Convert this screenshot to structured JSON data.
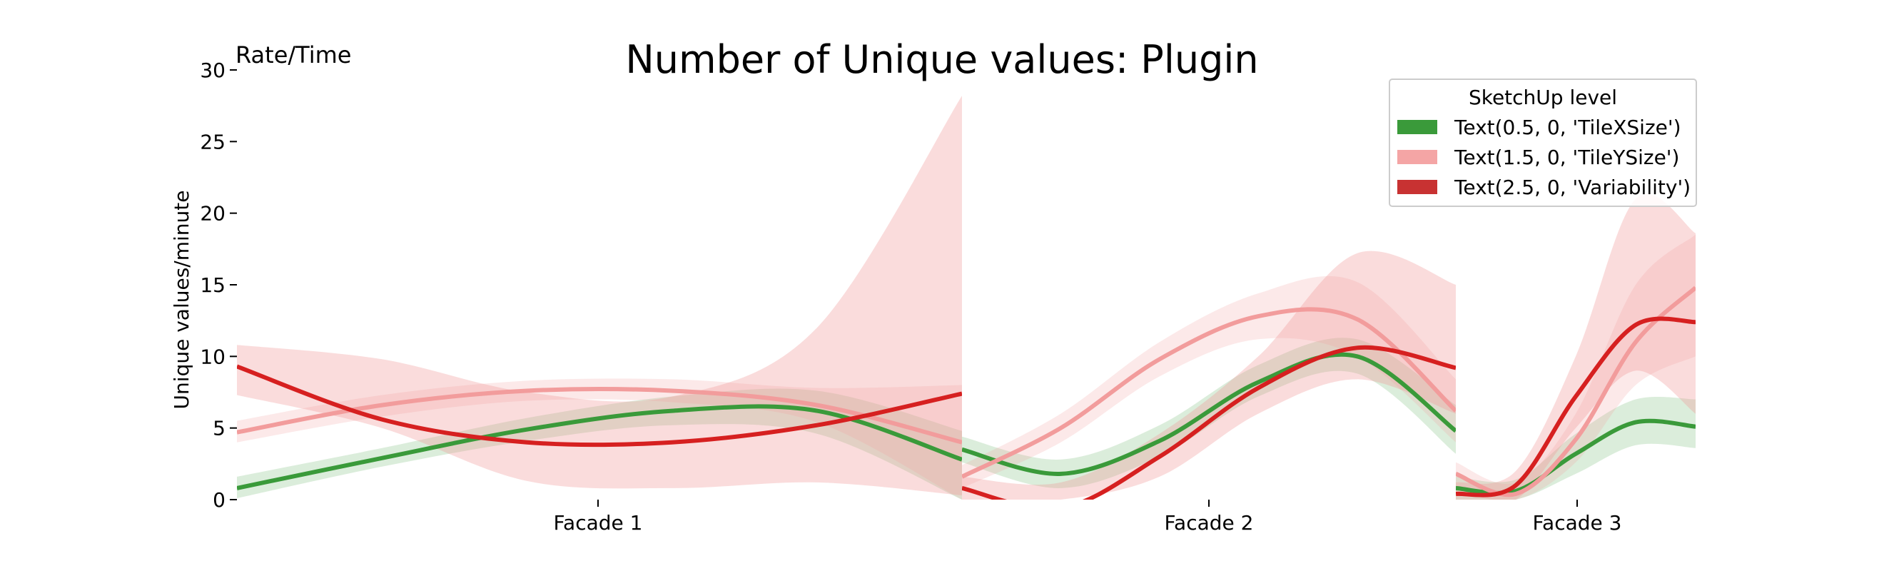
{
  "chart_data": {
    "type": "line",
    "title": "Number of Unique values: Plugin",
    "corner_label": "Rate/Time",
    "ylabel": "Unique values/minute",
    "xlabel": "",
    "ylim": [
      0,
      30
    ],
    "yticks": [
      "0",
      "5",
      "10",
      "15",
      "20",
      "25",
      "30"
    ],
    "categories": [
      "Facade 1",
      "Facade 2",
      "Facade 3"
    ],
    "grid": false,
    "legend": {
      "title": "SketchUp level",
      "placement": "top-right",
      "entries": [
        {
          "label": "Text(0.5, 0, 'TileXSize')",
          "color": "#3a9a3a"
        },
        {
          "label": "Text(1.5, 0, 'TileYSize')",
          "color": "#f4a5a5"
        },
        {
          "label": "Text(2.5, 0, 'Variability')",
          "color": "#c83232"
        }
      ]
    },
    "x_domain": [
      0,
      1
    ],
    "segments": [
      {
        "category": "Facade 1",
        "x_range": [
          0,
          1
        ],
        "series": [
          {
            "level": "TileXSize",
            "color": "#3a9a3a",
            "band_color": "#3a9a3a",
            "band_opacity": 0.18,
            "x": [
              0,
              0.2,
              0.4,
              0.6,
              0.8,
              1.0
            ],
            "y": [
              0.8,
              2.9,
              4.9,
              6.2,
              6.2,
              2.8
            ],
            "lo": [
              0.1,
              2.3,
              4.1,
              5.2,
              4.6,
              0.0
            ],
            "hi": [
              1.6,
              3.6,
              5.7,
              7.2,
              7.6,
              4.8
            ]
          },
          {
            "level": "TileYSize",
            "color": "#f29c9c",
            "band_color": "#f29c9c",
            "band_opacity": 0.22,
            "x": [
              0,
              0.2,
              0.4,
              0.6,
              0.8,
              1.0
            ],
            "y": [
              4.7,
              6.6,
              7.6,
              7.6,
              6.6,
              4.0
            ],
            "lo": [
              4.0,
              5.8,
              6.9,
              6.8,
              5.4,
              0.0
            ],
            "hi": [
              5.5,
              7.3,
              8.3,
              8.4,
              7.8,
              8.0
            ]
          },
          {
            "level": "Variability",
            "color": "#d62020",
            "band_color": "#f29c9c",
            "band_opacity": 0.35,
            "x": [
              0,
              0.2,
              0.4,
              0.6,
              0.8,
              1.0
            ],
            "y": [
              9.3,
              5.6,
              4.0,
              4.0,
              5.2,
              7.4
            ],
            "lo": [
              7.3,
              5.0,
              1.3,
              0.8,
              1.2,
              0.3
            ],
            "hi": [
              10.8,
              9.8,
              7.5,
              7.2,
              12.0,
              28.2
            ]
          }
        ]
      },
      {
        "category": "Facade 2",
        "x_range": [
          0,
          1
        ],
        "series": [
          {
            "level": "TileXSize",
            "color": "#3a9a3a",
            "band_color": "#3a9a3a",
            "band_opacity": 0.18,
            "x": [
              0,
              0.2,
              0.4,
              0.6,
              0.8,
              1.0
            ],
            "y": [
              3.5,
              1.8,
              4.1,
              8.2,
              10.0,
              4.8
            ],
            "lo": [
              2.6,
              0.8,
              3.0,
              7.2,
              8.8,
              3.2
            ],
            "hi": [
              4.4,
              2.8,
              5.2,
              9.4,
              11.2,
              6.6
            ]
          },
          {
            "level": "TileYSize",
            "color": "#f29c9c",
            "band_color": "#f29c9c",
            "band_opacity": 0.22,
            "x": [
              0,
              0.2,
              0.4,
              0.6,
              0.8,
              1.0
            ],
            "y": [
              1.6,
              5.0,
              9.8,
              12.8,
              12.6,
              6.2
            ],
            "lo": [
              0.8,
              4.0,
              8.6,
              11.2,
              10.0,
              4.0
            ],
            "hi": [
              2.4,
              6.0,
              11.0,
              14.4,
              15.2,
              8.4
            ]
          },
          {
            "level": "Variability",
            "color": "#d62020",
            "band_color": "#f29c9c",
            "band_opacity": 0.35,
            "x": [
              0,
              0.2,
              0.4,
              0.6,
              0.8,
              1.0
            ],
            "y": [
              0.8,
              -0.6,
              3.0,
              7.8,
              10.6,
              9.2
            ],
            "lo": [
              0.0,
              0.0,
              1.6,
              6.0,
              8.4,
              6.0
            ],
            "hi": [
              1.6,
              1.2,
              4.6,
              10.0,
              17.2,
              15.0
            ]
          }
        ]
      },
      {
        "category": "Facade 3",
        "x_range": [
          0,
          1
        ],
        "series": [
          {
            "level": "TileXSize",
            "color": "#3a9a3a",
            "band_color": "#3a9a3a",
            "band_opacity": 0.18,
            "x": [
              0,
              0.25,
              0.5,
              0.75,
              1.0
            ],
            "y": [
              0.8,
              0.6,
              3.2,
              5.4,
              5.1
            ],
            "lo": [
              0.0,
              0.0,
              1.8,
              3.8,
              3.6
            ],
            "hi": [
              1.6,
              1.4,
              4.6,
              7.0,
              7.0
            ]
          },
          {
            "level": "TileYSize",
            "color": "#f29c9c",
            "band_color": "#f29c9c",
            "band_opacity": 0.22,
            "x": [
              0,
              0.25,
              0.5,
              0.75,
              1.0
            ],
            "y": [
              1.8,
              0.4,
              4.2,
              11.0,
              14.8
            ],
            "lo": [
              0.6,
              0.0,
              2.6,
              8.0,
              10.0
            ],
            "hi": [
              2.6,
              1.2,
              6.0,
              15.0,
              18.5
            ]
          },
          {
            "level": "Variability",
            "color": "#d62020",
            "band_color": "#f29c9c",
            "band_opacity": 0.35,
            "x": [
              0,
              0.25,
              0.5,
              0.75,
              1.0
            ],
            "y": [
              0.4,
              1.0,
              7.2,
              12.2,
              12.4
            ],
            "lo": [
              0.0,
              0.0,
              5.0,
              9.0,
              6.0
            ],
            "hi": [
              1.2,
              2.0,
              10.0,
              21.0,
              18.6
            ]
          }
        ]
      }
    ]
  }
}
